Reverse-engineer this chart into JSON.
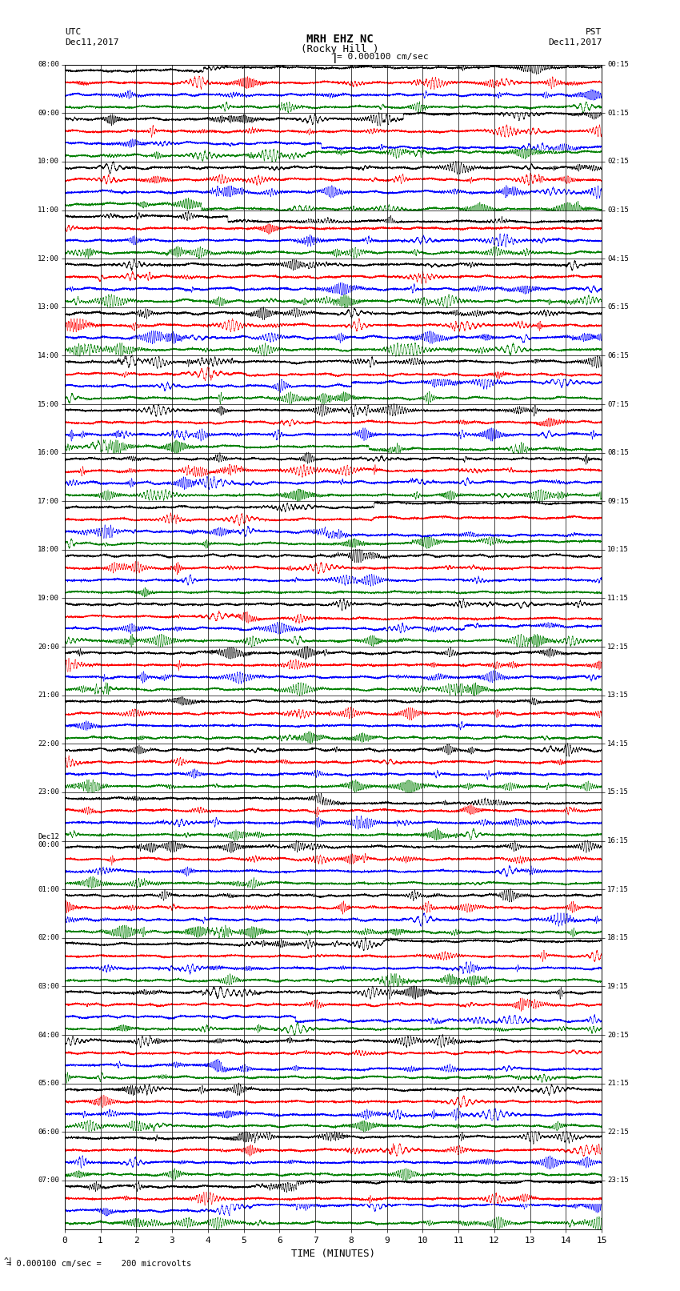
{
  "title_line1": "MRH EHZ NC",
  "title_line2": "(Rocky Hill )",
  "scale_label": "= 0.000100 cm/sec",
  "bottom_label": "= 0.000100 cm/sec =    200 microvolts",
  "xlabel": "TIME (MINUTES)",
  "left_header": "UTC\nDec11,2017",
  "right_header": "PST\nDec11,2017",
  "utc_labels": [
    "08:00",
    "09:00",
    "10:00",
    "11:00",
    "12:00",
    "13:00",
    "14:00",
    "15:00",
    "16:00",
    "17:00",
    "18:00",
    "19:00",
    "20:00",
    "21:00",
    "22:00",
    "23:00",
    "Dec12\n00:00",
    "01:00",
    "02:00",
    "03:00",
    "04:00",
    "05:00",
    "06:00",
    "07:00"
  ],
  "pst_labels": [
    "00:15",
    "01:15",
    "02:15",
    "03:15",
    "04:15",
    "05:15",
    "06:15",
    "07:15",
    "08:15",
    "09:15",
    "10:15",
    "11:15",
    "12:15",
    "13:15",
    "14:15",
    "15:15",
    "16:15",
    "17:15",
    "18:15",
    "19:15",
    "20:15",
    "21:15",
    "22:15",
    "23:15"
  ],
  "num_rows": 24,
  "colors": [
    "black",
    "red",
    "blue",
    "green"
  ],
  "traces_per_row": 4,
  "x_min": 0,
  "x_max": 15,
  "x_ticks": [
    0,
    1,
    2,
    3,
    4,
    5,
    6,
    7,
    8,
    9,
    10,
    11,
    12,
    13,
    14,
    15
  ],
  "bg_color": "white",
  "fig_width": 8.5,
  "fig_height": 16.13
}
